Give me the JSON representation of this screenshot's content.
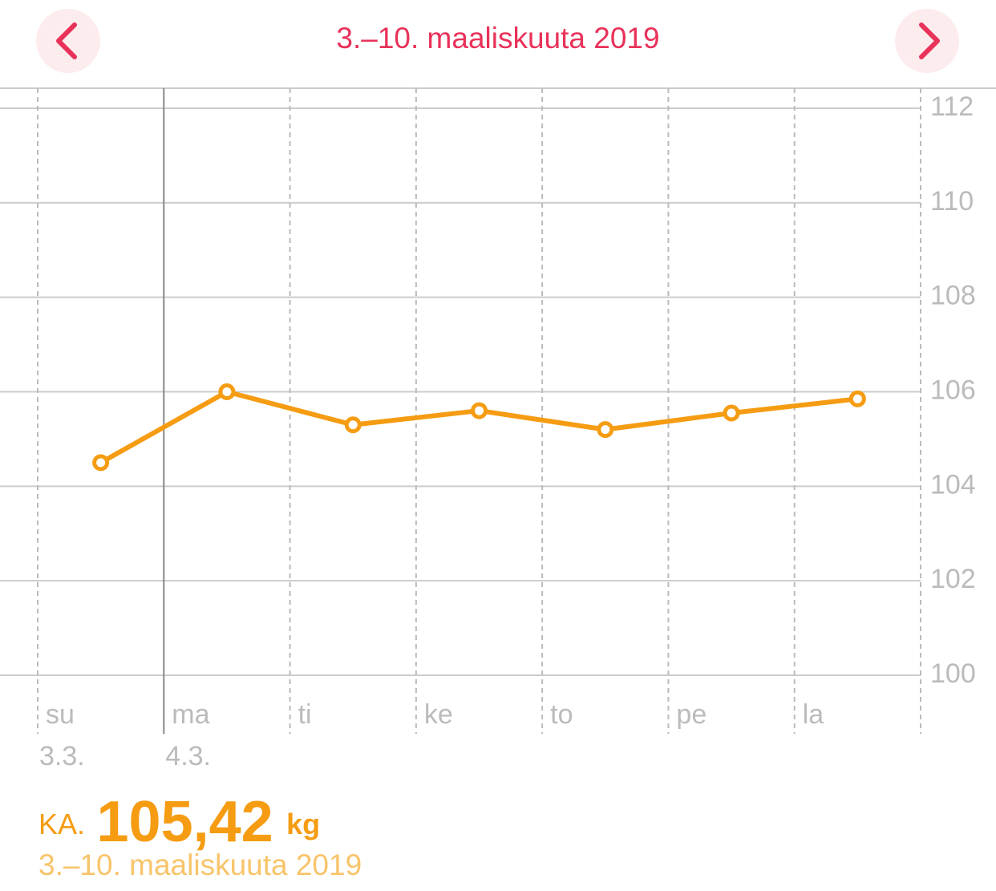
{
  "header": {
    "title": "3.–10. maaliskuuta 2019"
  },
  "chart_data": {
    "type": "line",
    "categories": [
      "su",
      "ma",
      "ti",
      "ke",
      "to",
      "pe",
      "la"
    ],
    "dates": [
      "3.3.",
      "4.3.",
      null,
      null,
      null,
      null,
      null
    ],
    "values": [
      104.5,
      106.0,
      105.3,
      105.6,
      105.2,
      105.55,
      105.85
    ],
    "color": "#f59c12",
    "ylim": [
      100,
      112
    ],
    "yticks": [
      100,
      102,
      104,
      106,
      108,
      110,
      112
    ],
    "grid": true
  },
  "summary": {
    "label": "KA.",
    "value": "105,42",
    "unit": "kg",
    "range": "3.–10. maaliskuuta 2019"
  }
}
